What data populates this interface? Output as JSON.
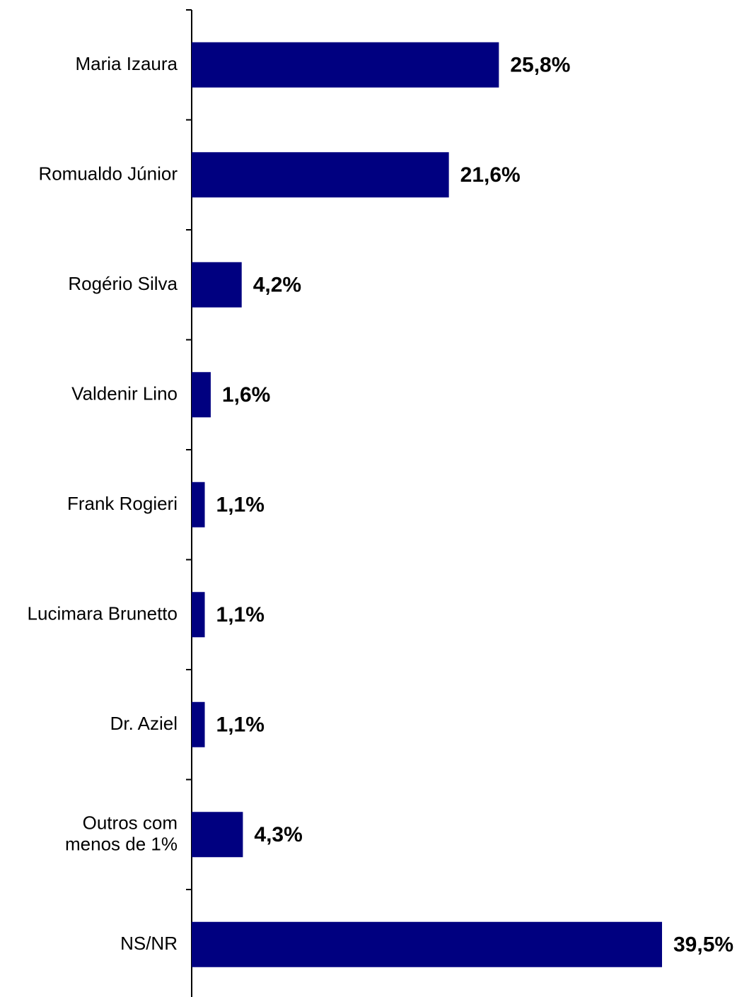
{
  "chart_data": {
    "type": "bar",
    "orientation": "horizontal",
    "categories": [
      "Maria Izaura",
      "Romualdo Júnior",
      "Rogério Silva",
      "Valdenir Lino",
      "Frank Rogieri",
      "Lucimara Brunetto",
      "Dr. Aziel",
      "Outros com\nmenos de 1%",
      "NS/NR"
    ],
    "values": [
      25.8,
      21.6,
      4.2,
      1.6,
      1.1,
      1.1,
      1.1,
      4.3,
      39.5
    ],
    "value_labels": [
      "25,8%",
      "21,6%",
      "4,2%",
      "1,6%",
      "1,1%",
      "1,1%",
      "1,1%",
      "4,3%",
      "39,5%"
    ],
    "xlim": [
      0,
      39.5
    ],
    "grid": false,
    "legend": "none",
    "bar_color": "#000080",
    "title": "",
    "xlabel": "",
    "ylabel": ""
  }
}
